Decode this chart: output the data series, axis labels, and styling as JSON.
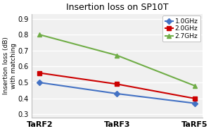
{
  "title": "Insertion loss on SP10T",
  "ylabel_line1": "Insertion loss (dB)",
  "ylabel_line2": "with matching",
  "categories": [
    "TaRF2",
    "TaRF3",
    "TaRF5"
  ],
  "series": [
    {
      "label": "1.0GHz",
      "values": [
        0.5,
        0.43,
        0.37
      ],
      "color": "#4472C4",
      "marker": "D",
      "markersize": 4
    },
    {
      "label": "2.0GHz",
      "values": [
        0.56,
        0.49,
        0.4
      ],
      "color": "#CC0000",
      "marker": "s",
      "markersize": 4
    },
    {
      "label": "2.7GHz",
      "values": [
        0.8,
        0.67,
        0.48
      ],
      "color": "#70AD47",
      "marker": "^",
      "markersize": 5
    }
  ],
  "ylim": [
    0.28,
    0.93
  ],
  "yticks": [
    0.3,
    0.4,
    0.5,
    0.6,
    0.7,
    0.8,
    0.9
  ],
  "background_color": "#FFFFFF",
  "plot_bg_color": "#F0F0F0",
  "grid_color": "#FFFFFF",
  "title_fontsize": 9,
  "label_fontsize": 6.5,
  "tick_fontsize": 7,
  "legend_fontsize": 6.5,
  "xtick_fontsize": 8
}
